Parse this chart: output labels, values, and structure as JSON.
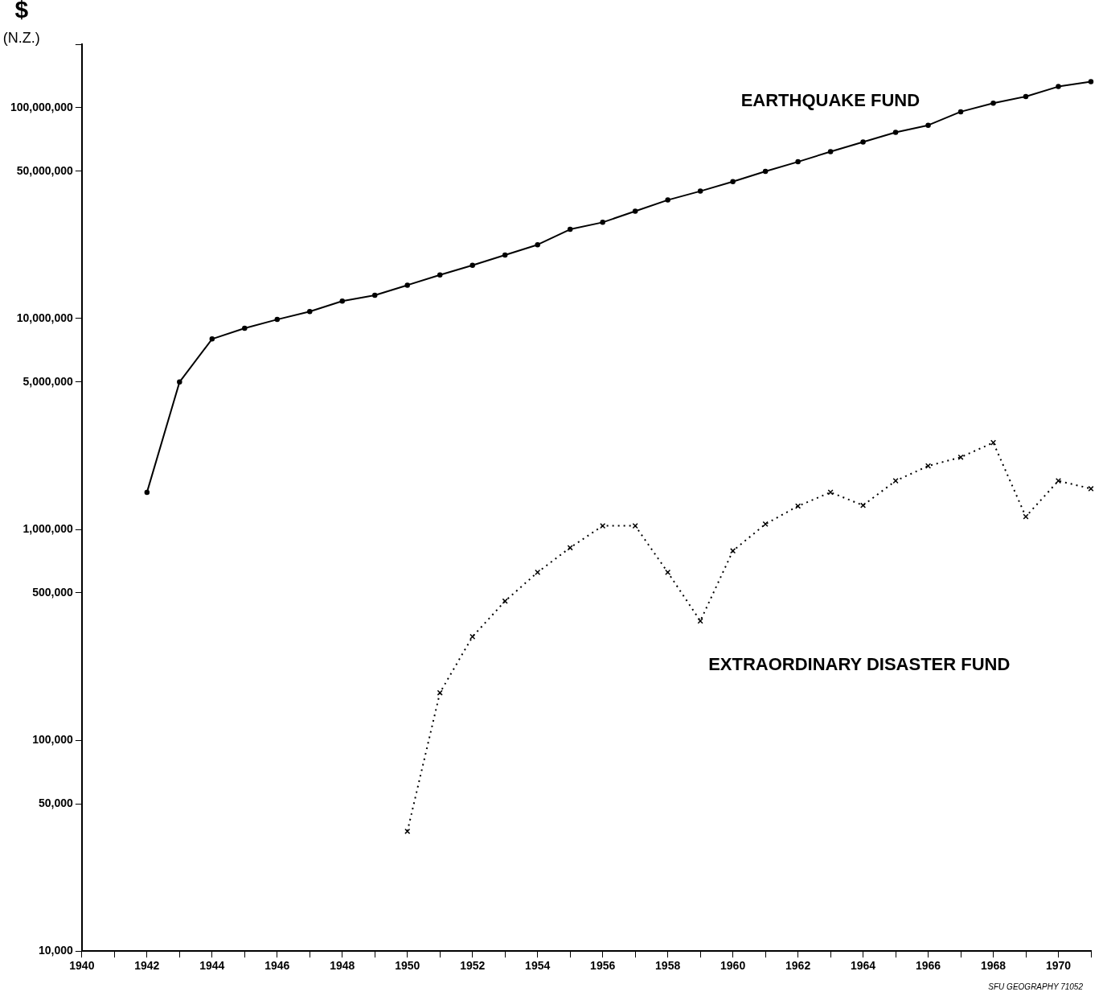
{
  "chart_data": {
    "type": "line",
    "ylabel": "$\n(N.Z.)",
    "log": "y",
    "grid": false,
    "legend": false,
    "x": [
      1942,
      1943,
      1944,
      1945,
      1946,
      1947,
      1948,
      1949,
      1950,
      1951,
      1952,
      1953,
      1954,
      1955,
      1956,
      1957,
      1958,
      1959,
      1960,
      1961,
      1962,
      1963,
      1964,
      1965,
      1966,
      1967,
      1968,
      1969,
      1970,
      1971
    ],
    "series": [
      {
        "name": "EARTHQUAKE FUND",
        "color": "#000000",
        "marker": "circle",
        "line_style": "solid",
        "values": [
          1500000,
          5000000,
          8000000,
          9000000,
          9900000,
          10800000,
          12100000,
          12900000,
          14400000,
          16100000,
          17900000,
          20000000,
          22400000,
          26500000,
          28600000,
          32300000,
          36500000,
          40200000,
          44600000,
          49900000,
          55400000,
          61900000,
          68800000,
          76400000,
          82600000,
          95700000,
          105000000,
          113000000,
          126000000,
          133000000
        ]
      },
      {
        "name": "EXTRAORDINARY DISASTER FUND",
        "color": "#000000",
        "marker": "cross",
        "line_style": "dotted",
        "x": [
          1950,
          1951,
          1952,
          1953,
          1954,
          1955,
          1956,
          1957,
          1958,
          1959,
          1960,
          1961,
          1962,
          1963,
          1964,
          1965,
          1966,
          1967,
          1968,
          1969,
          1970,
          1971
        ],
        "values": [
          37000,
          168000,
          310000,
          457000,
          626000,
          819000,
          1040000,
          1040000,
          626000,
          368000,
          791000,
          1060000,
          1290000,
          1500000,
          1300000,
          1700000,
          2000000,
          2200000,
          2580000,
          1150000,
          1700000,
          1560000
        ]
      }
    ],
    "xlim": [
      1940,
      1971
    ],
    "xticks": [
      1940,
      {
        "value": 1941,
        "label": null
      },
      1942,
      {
        "value": 1943,
        "label": null
      },
      1944,
      {
        "value": 1945,
        "label": null
      },
      1946,
      {
        "value": 1947,
        "label": null
      },
      1948,
      {
        "value": 1949,
        "label": null
      },
      1950,
      {
        "value": 1951,
        "label": null
      },
      1952,
      {
        "value": 1953,
        "label": null
      },
      1954,
      {
        "value": 1955,
        "label": null
      },
      1956,
      {
        "value": 1957,
        "label": null
      },
      1958,
      {
        "value": 1959,
        "label": null
      },
      1960,
      {
        "value": 1961,
        "label": null
      },
      1962,
      {
        "value": 1963,
        "label": null
      },
      1964,
      {
        "value": 1965,
        "label": null
      },
      1966,
      {
        "value": 1967,
        "label": null
      },
      1968,
      {
        "value": 1969,
        "label": null
      },
      1970,
      {
        "value": 1971,
        "label": null
      }
    ],
    "ylim": [
      10000,
      200000000
    ],
    "yticks": [
      {
        "value": 10000,
        "label": "10,000"
      },
      {
        "value": 50000,
        "label": "50,000"
      },
      {
        "value": 100000,
        "label": "100,000"
      },
      {
        "value": 500000,
        "label": "500,000"
      },
      {
        "value": 1000000,
        "label": "1,000,000"
      },
      {
        "value": 5000000,
        "label": "5,000,000"
      },
      {
        "value": 10000000,
        "label": "10,000,000"
      },
      {
        "value": 50000000,
        "label": "50,000,000"
      },
      {
        "value": 100000000,
        "label": "100,000,000"
      },
      {
        "value": 200000000,
        "label": null
      }
    ],
    "annotations": [
      "SFU GEOGRAPHY 71052"
    ]
  }
}
